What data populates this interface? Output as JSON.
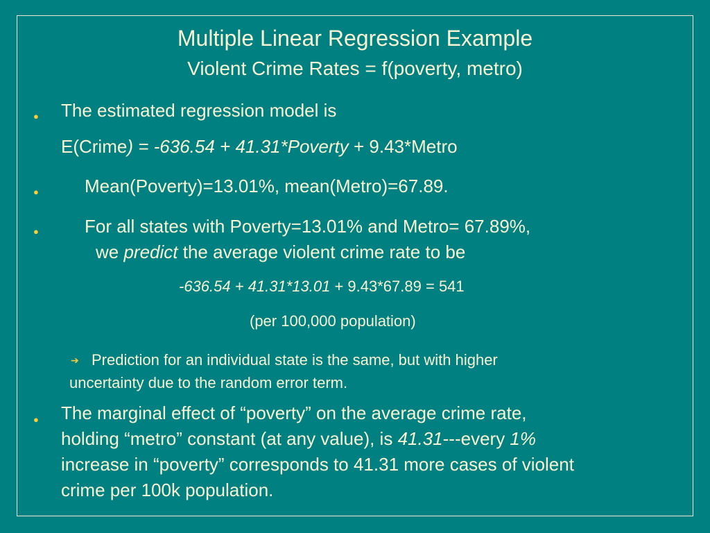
{
  "slide": {
    "title": "Multiple Linear Regression Example",
    "subtitle": "Violent Crime Rates = f(poverty, metro)"
  },
  "bullet1": {
    "line1": "The estimated regression model is",
    "model_prefix": "E(Crime",
    "model_italic": ") = -636.54 + 41.31*Poverty",
    "model_suffix": " + 9.43*Metro"
  },
  "bullet2": {
    "text": "Mean(Poverty)=13.01%, mean(Metro)=67.89."
  },
  "bullet3": {
    "line1": "For all states with Poverty=13.01% and Metro= 67.89%,",
    "line2_prefix": "we ",
    "line2_italic": "predict",
    "line2_suffix": " the average violent crime rate to  be",
    "calc_italic": "-636.54 + 41.31*13.01",
    "calc_suffix": " + 9.43*67.89 = 541",
    "units": "(per 100,000 population)"
  },
  "sub_bullet": {
    "line1": "Prediction for an individual state is the same, but with higher",
    "line2": "uncertainty due to the random error term."
  },
  "bullet4": {
    "line1": "The marginal effect of “poverty” on the average crime rate,",
    "line2_prefix": "holding “metro” constant (at any value), is ",
    "line2_italic1": "41.31",
    "line2_mid": "---every ",
    "line2_italic2": "1%",
    "line3": "increase in “poverty” corresponds to 41.31 more cases of violent",
    "line4": "crime per 100k population."
  },
  "colors": {
    "background": "#008080",
    "text": "#f8f3d2",
    "bullet": "#ffcc33"
  }
}
